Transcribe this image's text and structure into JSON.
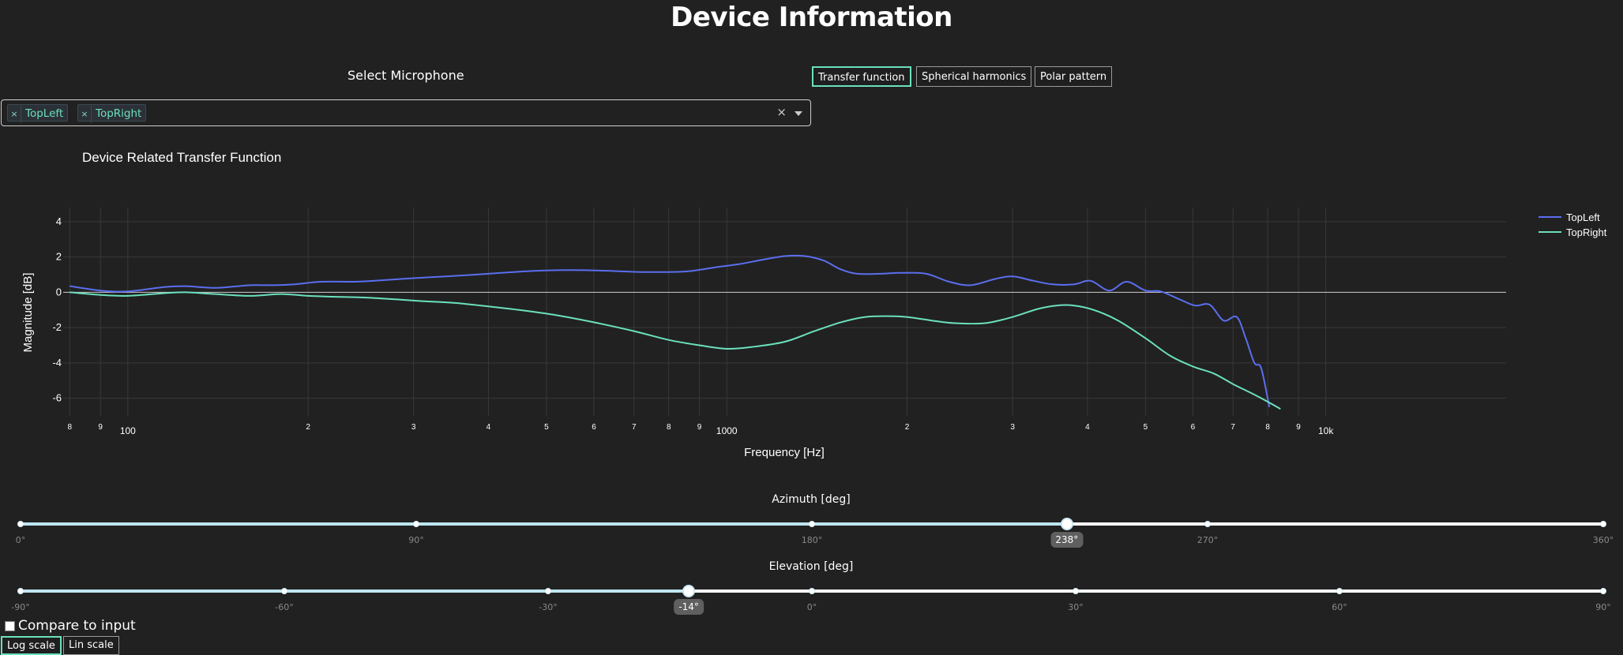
{
  "page": {
    "title": "Device Information"
  },
  "select": {
    "label": "Select Microphone",
    "chips": [
      {
        "remove": "×",
        "label": "TopLeft"
      },
      {
        "remove": "×",
        "label": "TopRight"
      }
    ],
    "clear": "×"
  },
  "tabs": [
    {
      "label": "Transfer function",
      "active": true
    },
    {
      "label": "Spherical harmonics",
      "active": false
    },
    {
      "label": "Polar pattern",
      "active": false
    }
  ],
  "chart_data": {
    "type": "line",
    "title": "Device Related Transfer Function",
    "xlabel": "Frequency [Hz]",
    "ylabel": "Magnitude [dB]",
    "x_scale": "log",
    "xlim": [
      78,
      20000
    ],
    "ylim": [
      -7,
      4.8
    ],
    "grid": true,
    "legend_position": "top-right",
    "y_ticks": [
      4,
      2,
      0,
      -2,
      -4,
      -6
    ],
    "x_ticks": [
      {
        "value": 80,
        "label": "8"
      },
      {
        "value": 90,
        "label": "9"
      },
      {
        "value": 100,
        "label": "100"
      },
      {
        "value": 200,
        "label": "2"
      },
      {
        "value": 300,
        "label": "3"
      },
      {
        "value": 400,
        "label": "4"
      },
      {
        "value": 500,
        "label": "5"
      },
      {
        "value": 600,
        "label": "6"
      },
      {
        "value": 700,
        "label": "7"
      },
      {
        "value": 800,
        "label": "8"
      },
      {
        "value": 900,
        "label": "9"
      },
      {
        "value": 1000,
        "label": "1000"
      },
      {
        "value": 2000,
        "label": "2"
      },
      {
        "value": 3000,
        "label": "3"
      },
      {
        "value": 4000,
        "label": "4"
      },
      {
        "value": 5000,
        "label": "5"
      },
      {
        "value": 6000,
        "label": "6"
      },
      {
        "value": 7000,
        "label": "7"
      },
      {
        "value": 8000,
        "label": "8"
      },
      {
        "value": 9000,
        "label": "9"
      },
      {
        "value": 10000,
        "label": "10k"
      }
    ],
    "series": [
      {
        "name": "TopLeft",
        "color": "#5b6ef0",
        "points": [
          [
            80,
            0.35
          ],
          [
            90,
            0.1
          ],
          [
            100,
            0.05
          ],
          [
            115,
            0.3
          ],
          [
            125,
            0.35
          ],
          [
            140,
            0.25
          ],
          [
            160,
            0.4
          ],
          [
            175,
            0.4
          ],
          [
            190,
            0.45
          ],
          [
            210,
            0.6
          ],
          [
            240,
            0.6
          ],
          [
            270,
            0.7
          ],
          [
            300,
            0.8
          ],
          [
            340,
            0.9
          ],
          [
            380,
            1.0
          ],
          [
            420,
            1.1
          ],
          [
            470,
            1.2
          ],
          [
            520,
            1.25
          ],
          [
            580,
            1.25
          ],
          [
            650,
            1.2
          ],
          [
            720,
            1.15
          ],
          [
            800,
            1.15
          ],
          [
            870,
            1.2
          ],
          [
            950,
            1.4
          ],
          [
            1050,
            1.6
          ],
          [
            1150,
            1.85
          ],
          [
            1250,
            2.05
          ],
          [
            1350,
            2.05
          ],
          [
            1450,
            1.8
          ],
          [
            1550,
            1.3
          ],
          [
            1650,
            1.05
          ],
          [
            1800,
            1.05
          ],
          [
            1950,
            1.1
          ],
          [
            2150,
            1.05
          ],
          [
            2350,
            0.6
          ],
          [
            2550,
            0.4
          ],
          [
            2800,
            0.75
          ],
          [
            3000,
            0.9
          ],
          [
            3250,
            0.65
          ],
          [
            3500,
            0.45
          ],
          [
            3800,
            0.45
          ],
          [
            4050,
            0.65
          ],
          [
            4350,
            0.1
          ],
          [
            4650,
            0.6
          ],
          [
            5000,
            0.1
          ],
          [
            5300,
            0.05
          ],
          [
            5700,
            -0.4
          ],
          [
            6050,
            -0.75
          ],
          [
            6400,
            -0.7
          ],
          [
            6750,
            -1.6
          ],
          [
            7100,
            -1.4
          ],
          [
            7350,
            -2.6
          ],
          [
            7600,
            -4.0
          ],
          [
            7800,
            -4.3
          ],
          [
            8050,
            -6.5
          ]
        ]
      },
      {
        "name": "TopRight",
        "color": "#6be0bd",
        "points": [
          [
            80,
            0.0
          ],
          [
            90,
            -0.15
          ],
          [
            100,
            -0.2
          ],
          [
            115,
            -0.05
          ],
          [
            125,
            0.0
          ],
          [
            140,
            -0.1
          ],
          [
            160,
            -0.2
          ],
          [
            180,
            -0.1
          ],
          [
            200,
            -0.2
          ],
          [
            220,
            -0.25
          ],
          [
            250,
            -0.3
          ],
          [
            280,
            -0.4
          ],
          [
            310,
            -0.5
          ],
          [
            350,
            -0.6
          ],
          [
            400,
            -0.8
          ],
          [
            450,
            -1.0
          ],
          [
            520,
            -1.3
          ],
          [
            600,
            -1.7
          ],
          [
            700,
            -2.2
          ],
          [
            800,
            -2.7
          ],
          [
            900,
            -3.0
          ],
          [
            1000,
            -3.2
          ],
          [
            1100,
            -3.1
          ],
          [
            1250,
            -2.8
          ],
          [
            1400,
            -2.2
          ],
          [
            1550,
            -1.7
          ],
          [
            1700,
            -1.4
          ],
          [
            1850,
            -1.35
          ],
          [
            2000,
            -1.4
          ],
          [
            2200,
            -1.6
          ],
          [
            2400,
            -1.75
          ],
          [
            2700,
            -1.75
          ],
          [
            3000,
            -1.4
          ],
          [
            3300,
            -0.95
          ],
          [
            3550,
            -0.75
          ],
          [
            3800,
            -0.75
          ],
          [
            4100,
            -1.0
          ],
          [
            4500,
            -1.6
          ],
          [
            5000,
            -2.6
          ],
          [
            5500,
            -3.6
          ],
          [
            6000,
            -4.2
          ],
          [
            6500,
            -4.6
          ],
          [
            7000,
            -5.2
          ],
          [
            7500,
            -5.7
          ],
          [
            8000,
            -6.2
          ],
          [
            8400,
            -6.6
          ]
        ]
      }
    ]
  },
  "azimuth": {
    "title": "Azimuth [deg]",
    "min": 0,
    "max": 360,
    "value": 238,
    "value_label": "238°",
    "marks": [
      {
        "value": 0,
        "label": "0°"
      },
      {
        "value": 90,
        "label": "90°"
      },
      {
        "value": 180,
        "label": "180°"
      },
      {
        "value": 270,
        "label": "270°"
      },
      {
        "value": 360,
        "label": "360°"
      }
    ],
    "dots": [
      0,
      90,
      180,
      270,
      360
    ],
    "fill_color": "#bfe6f2"
  },
  "elevation": {
    "title": "Elevation [deg]",
    "min": -90,
    "max": 90,
    "value": -14,
    "value_label": "-14°",
    "marks": [
      {
        "value": -90,
        "label": "-90°"
      },
      {
        "value": -60,
        "label": "-60°"
      },
      {
        "value": -30,
        "label": "-30°"
      },
      {
        "value": 0,
        "label": "0°"
      },
      {
        "value": 30,
        "label": "30°"
      },
      {
        "value": 60,
        "label": "60°"
      },
      {
        "value": 90,
        "label": "90°"
      }
    ],
    "dots": [
      -90,
      -60,
      -30,
      0,
      30,
      60,
      90
    ],
    "fill_color": "#bfe6f2"
  },
  "compare": {
    "label": "Compare to input",
    "checked": false
  },
  "scale_buttons": [
    {
      "label": "Log scale",
      "active": true
    },
    {
      "label": "Lin scale",
      "active": false
    }
  ]
}
